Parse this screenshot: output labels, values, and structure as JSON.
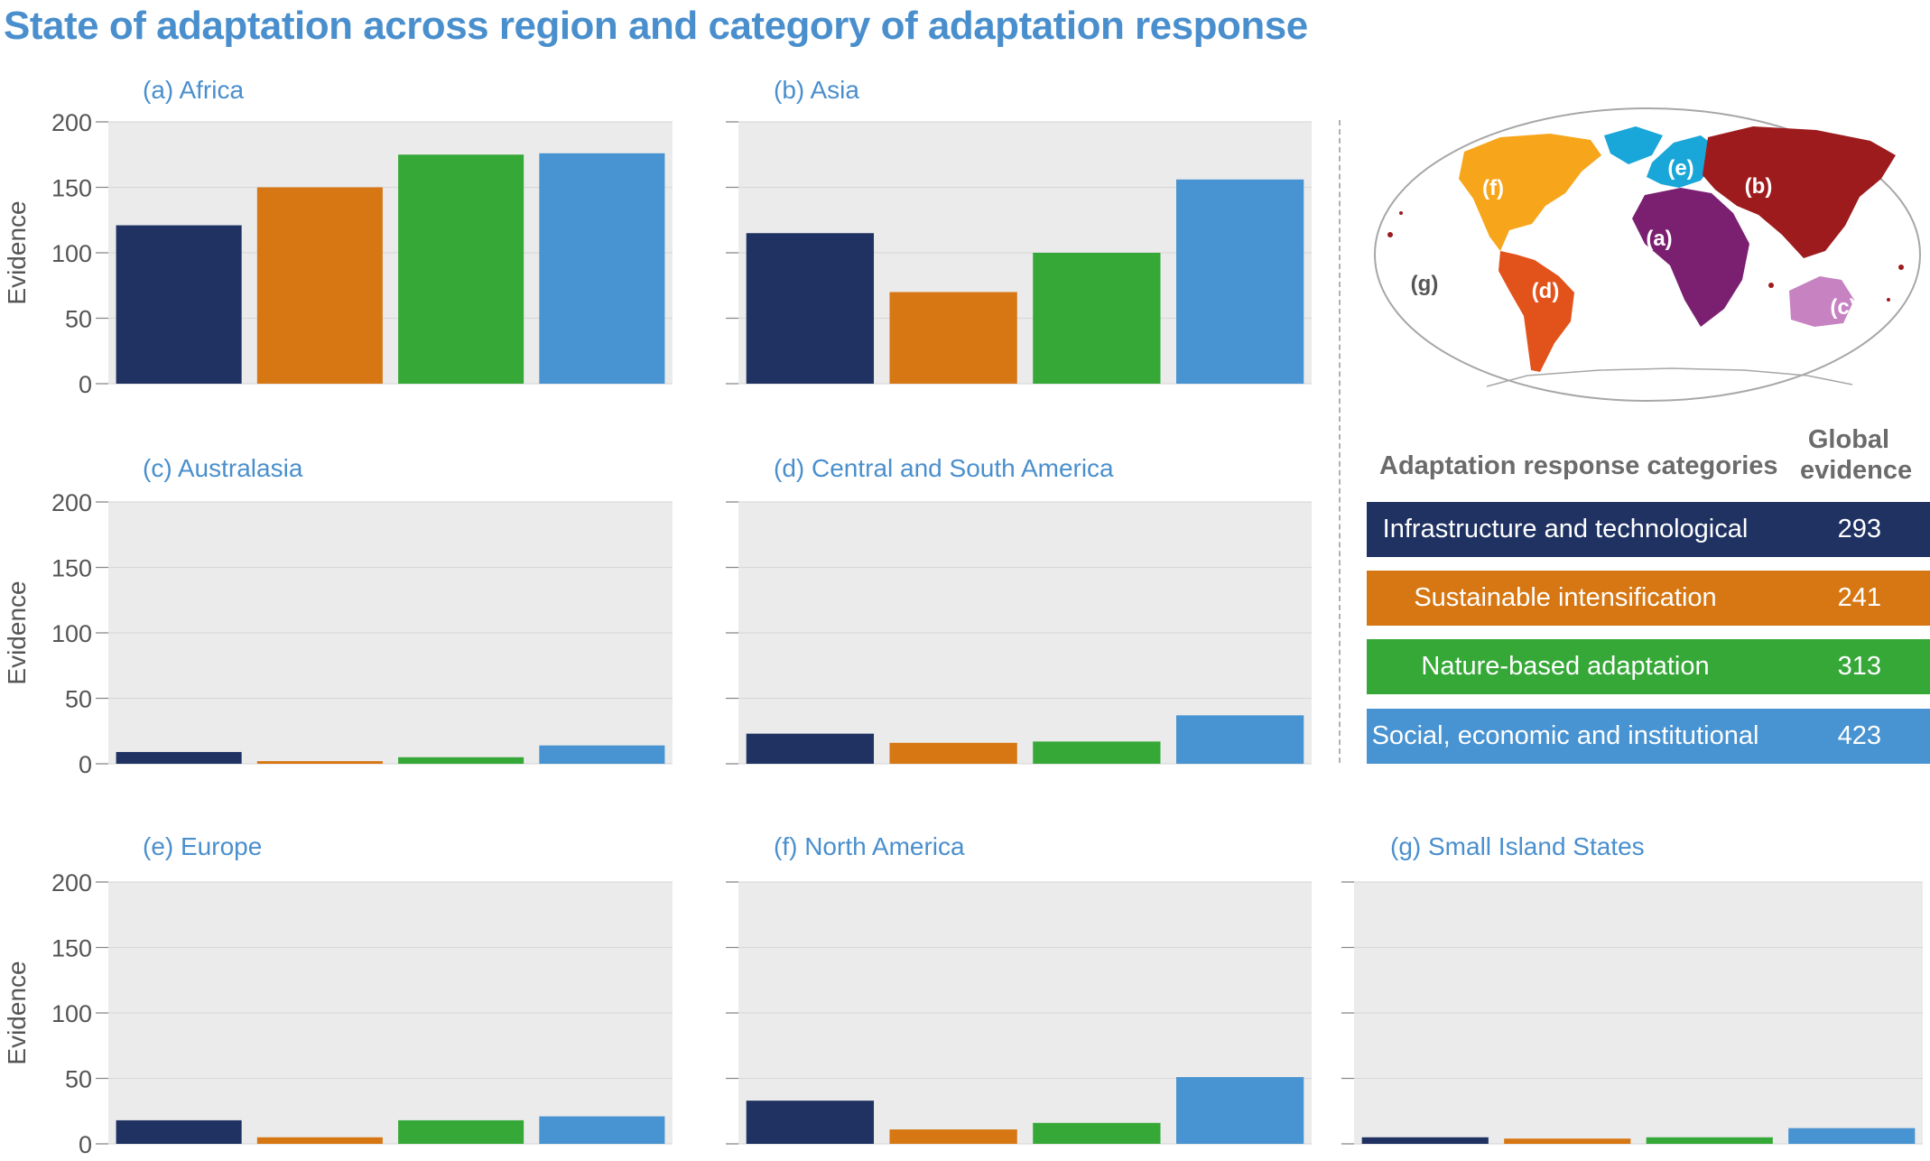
{
  "title": "State of adaptation across region and category of adaptation response",
  "ylabel": "Evidence",
  "colors": {
    "infrastructure": "#1f3262",
    "sustainable": "#d67713",
    "nature": "#36a838",
    "social": "#4893d1",
    "title_blue": "#4a8fcd",
    "panel_bg": "#ebebeb"
  },
  "legend": {
    "heading": "Adaptation response categories",
    "global_heading": "Global evidence",
    "items": [
      {
        "label": "Infrastructure and technological",
        "value": "293"
      },
      {
        "label": "Sustainable intensification",
        "value": "241"
      },
      {
        "label": "Nature-based adaptation",
        "value": "313"
      },
      {
        "label": "Social, economic and institutional",
        "value": "423"
      }
    ]
  },
  "map": {
    "labels": {
      "a": "(a)",
      "b": "(b)",
      "c": "(c)",
      "d": "(d)",
      "e": "(e)",
      "f": "(f)",
      "g": "(g)"
    }
  },
  "chart_data": [
    {
      "type": "bar",
      "title": "(a) Africa",
      "categories": [
        "Infrastructure and technological",
        "Sustainable intensification",
        "Nature-based adaptation",
        "Social, economic and institutional"
      ],
      "values": [
        121,
        150,
        175,
        176
      ],
      "ylabel": "Evidence",
      "ylim": [
        0,
        200
      ],
      "yticks": [
        0,
        50,
        100,
        150,
        200
      ]
    },
    {
      "type": "bar",
      "title": "(b) Asia",
      "categories": [
        "Infrastructure and technological",
        "Sustainable intensification",
        "Nature-based adaptation",
        "Social, economic and institutional"
      ],
      "values": [
        115,
        70,
        100,
        156
      ],
      "ylabel": "",
      "ylim": [
        0,
        200
      ]
    },
    {
      "type": "bar",
      "title": "(c) Australasia",
      "categories": [
        "Infrastructure and technological",
        "Sustainable intensification",
        "Nature-based adaptation",
        "Social, economic and institutional"
      ],
      "values": [
        9,
        2,
        5,
        14
      ],
      "ylabel": "Evidence",
      "ylim": [
        0,
        200
      ],
      "yticks": [
        0,
        50,
        100,
        150,
        200
      ]
    },
    {
      "type": "bar",
      "title": "(d) Central and South America",
      "categories": [
        "Infrastructure and technological",
        "Sustainable intensification",
        "Nature-based adaptation",
        "Social, economic and institutional"
      ],
      "values": [
        23,
        16,
        17,
        37
      ],
      "ylabel": "",
      "ylim": [
        0,
        200
      ]
    },
    {
      "type": "bar",
      "title": "(e) Europe",
      "categories": [
        "Infrastructure and technological",
        "Sustainable intensification",
        "Nature-based adaptation",
        "Social, economic and institutional"
      ],
      "values": [
        18,
        5,
        18,
        21
      ],
      "ylabel": "Evidence",
      "ylim": [
        0,
        200
      ],
      "yticks": [
        0,
        50,
        100,
        150,
        200
      ]
    },
    {
      "type": "bar",
      "title": "(f) North America",
      "categories": [
        "Infrastructure and technological",
        "Sustainable intensification",
        "Nature-based adaptation",
        "Social, economic and institutional"
      ],
      "values": [
        33,
        11,
        16,
        51
      ],
      "ylabel": "",
      "ylim": [
        0,
        200
      ]
    },
    {
      "type": "bar",
      "title": "(g) Small Island States",
      "categories": [
        "Infrastructure and technological",
        "Sustainable intensification",
        "Nature-based adaptation",
        "Social, economic and institutional"
      ],
      "values": [
        5,
        4,
        5,
        12
      ],
      "ylabel": "",
      "ylim": [
        0,
        200
      ]
    }
  ]
}
